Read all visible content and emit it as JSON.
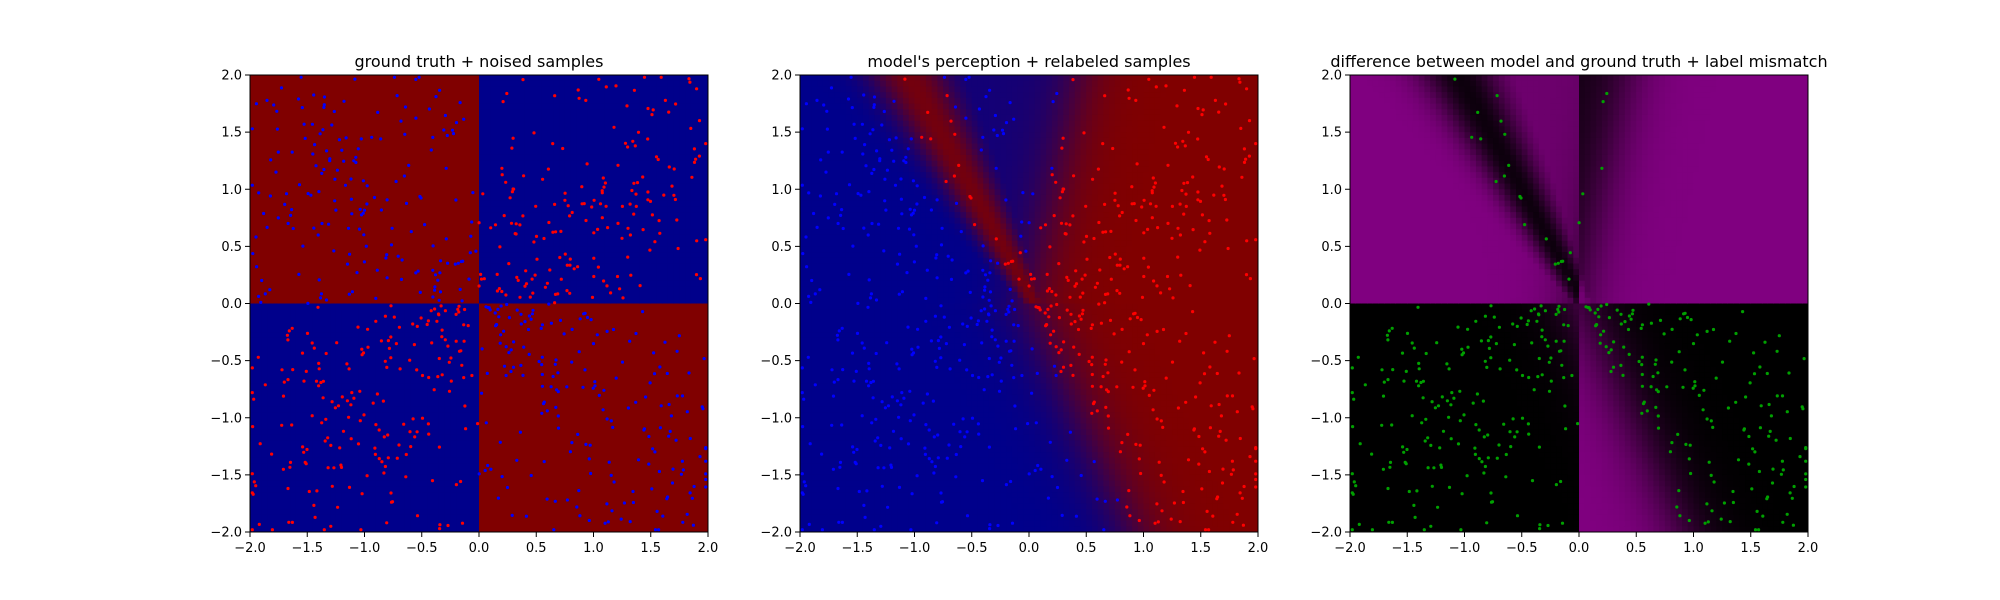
{
  "colors": {
    "red": "#800000",
    "blue": "#00008b",
    "point_red": "#ff0000",
    "point_blue": "#0000ff",
    "point_green": "#00a000",
    "magenta": "#800080",
    "black": "#000000"
  },
  "chart_data": [
    {
      "type": "heatmap",
      "title": "ground truth + noised samples",
      "xlim": [
        -2.0,
        2.0
      ],
      "ylim": [
        -2.0,
        2.0
      ],
      "xticks": [
        -2.0,
        -1.5,
        -1.0,
        -0.5,
        0.0,
        0.5,
        1.0,
        1.5,
        2.0
      ],
      "yticks": [
        -2.0,
        -1.5,
        -1.0,
        -0.5,
        0.0,
        0.5,
        1.0,
        1.5,
        2.0
      ],
      "xtick_labels": [
        "−2.0",
        "−1.5",
        "−1.0",
        "−0.5",
        "0.0",
        "0.5",
        "1.0",
        "1.5",
        "2.0"
      ],
      "ytick_labels": [
        "−2.0",
        "−1.5",
        "−1.0",
        "−0.5",
        "0.0",
        "0.5",
        "1.0",
        "1.5",
        "2.0"
      ],
      "background": "xor quadrants: red where x<0,y>0 and x>0,y<0; blue where x>0,y>0 and x<0,y<0",
      "series": [
        {
          "color": "#ff0000",
          "region": "x>0 y>0 and x<0 y<0 (mostly)",
          "approx_count": 380
        },
        {
          "color": "#0000ff",
          "region": "x<0 y>0 and x>0 y<0 (mostly)",
          "approx_count": 380
        }
      ]
    },
    {
      "type": "heatmap",
      "title": "model's perception + relabeled samples",
      "xlim": [
        -2.0,
        2.0
      ],
      "ylim": [
        -2.0,
        2.0
      ],
      "xticks": [
        -2.0,
        -1.5,
        -1.0,
        -0.5,
        0.0,
        0.5,
        1.0,
        1.5,
        2.0
      ],
      "yticks": [
        -2.0,
        -1.5,
        -1.0,
        -0.5,
        0.0,
        0.5,
        1.0,
        1.5,
        2.0
      ],
      "xtick_labels": [
        "−2.0",
        "−1.5",
        "−1.0",
        "−0.5",
        "0.0",
        "0.5",
        "1.0",
        "1.5",
        "2.0"
      ],
      "ytick_labels": [
        "−2.0",
        "−1.5",
        "−1.0",
        "−0.5",
        "0.0",
        "0.5",
        "1.0",
        "1.5",
        "2.0"
      ],
      "background": "blue on left of diagonal boundary, red on right, with red and blue wedges near top",
      "series": [
        {
          "color": "#ff0000",
          "region": "right of boundary",
          "approx_count": 380
        },
        {
          "color": "#0000ff",
          "region": "left of boundary",
          "approx_count": 380
        }
      ]
    },
    {
      "type": "heatmap",
      "title": "difference between model and ground truth + label mismatch",
      "xlim": [
        -2.0,
        2.0
      ],
      "ylim": [
        -2.0,
        2.0
      ],
      "xticks": [
        -2.0,
        -1.5,
        -1.0,
        -0.5,
        0.0,
        0.5,
        1.0,
        1.5,
        2.0
      ],
      "yticks": [
        -2.0,
        -1.5,
        -1.0,
        -0.5,
        0.0,
        0.5,
        1.0,
        1.5,
        2.0
      ],
      "xtick_labels": [
        "−2.0",
        "−1.5",
        "−1.0",
        "−0.5",
        "0.0",
        "0.5",
        "1.0",
        "1.5",
        "2.0"
      ],
      "ytick_labels": [
        "−2.0",
        "−1.5",
        "−1.0",
        "−0.5",
        "0.0",
        "0.5",
        "1.0",
        "1.5",
        "2.0"
      ],
      "background": "magenta where model disagrees with ground truth, black where they agree",
      "series": [
        {
          "color": "#00a000",
          "region": "mismatched labels",
          "approx_count": 230
        }
      ]
    }
  ]
}
